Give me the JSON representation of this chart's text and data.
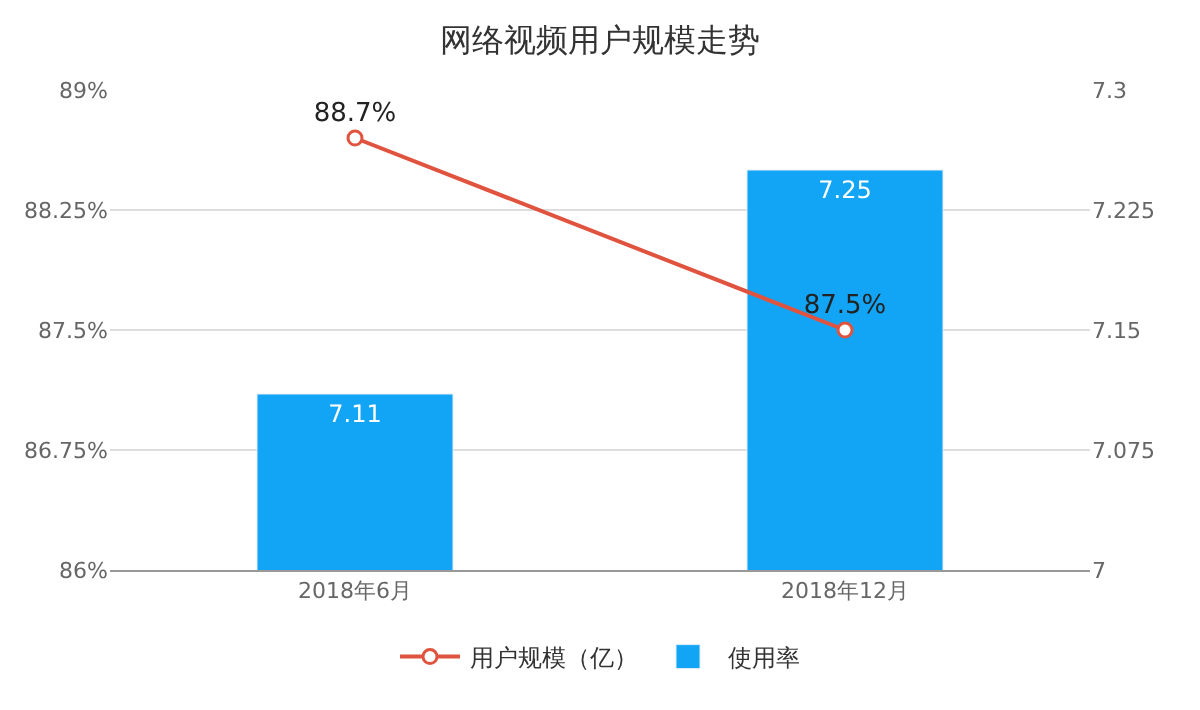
{
  "chart_data": {
    "type": "bar",
    "title": "网络视频用户规模走势",
    "categories": [
      "2018年6月",
      "2018年12月"
    ],
    "series": [
      {
        "name": "用户规模（亿）",
        "type": "line",
        "axis": "y",
        "color": "#e0533f",
        "marker": "circle",
        "values": [
          88.7,
          87.5
        ],
        "value_labels": [
          "88.7%",
          "87.5%"
        ]
      },
      {
        "name": "使用率",
        "axis": "y2",
        "color": "#12a5f6",
        "values": [
          7.11,
          7.25
        ],
        "value_labels": [
          "7.11",
          "7.25"
        ]
      }
    ],
    "ylim": [
      86,
      89
    ],
    "yticks": [
      {
        "value": 86,
        "label": "86%"
      },
      {
        "value": 86.75,
        "label": "86.75%"
      },
      {
        "value": 87.5,
        "label": "87.5%"
      },
      {
        "value": 88.25,
        "label": "88.25%"
      },
      {
        "value": 89,
        "label": "89%"
      }
    ],
    "y2lim": [
      7,
      7.3
    ],
    "y2ticks": [
      7,
      7.075,
      7.15,
      7.225,
      7.3
    ],
    "grid": "y",
    "legend": "bottom"
  }
}
